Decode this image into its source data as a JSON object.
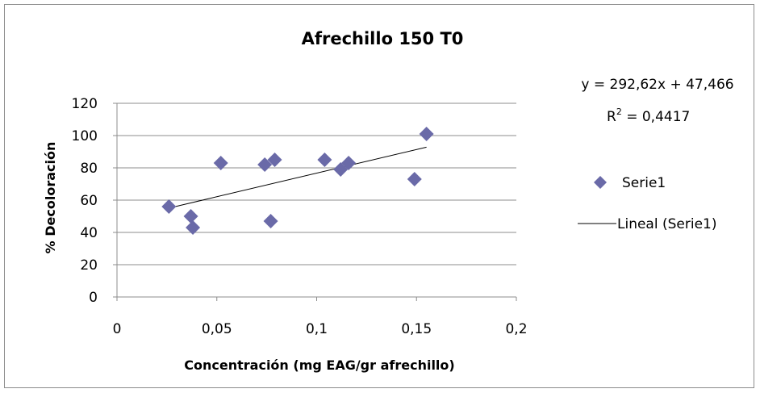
{
  "chart_data": {
    "type": "scatter",
    "title": "Afrechillo 150 T0",
    "xlabel": "Concentración (mg EAG/gr afrechillo)",
    "ylabel": "% Decoloración",
    "xlim": [
      0,
      0.2
    ],
    "ylim": [
      0,
      120
    ],
    "x_ticks": [
      0,
      0.05,
      0.1,
      0.15,
      0.2
    ],
    "x_tick_labels": [
      "0",
      "0,05",
      "0,1",
      "0,15",
      "0,2"
    ],
    "y_ticks": [
      0,
      20,
      40,
      60,
      80,
      100,
      120
    ],
    "y_tick_labels": [
      "0",
      "20",
      "40",
      "60",
      "80",
      "100",
      "120"
    ],
    "grid": "horizontal",
    "legend_position": "right",
    "series": [
      {
        "name": "Serie1",
        "marker": "diamond",
        "color": "#6a6aa8",
        "points": [
          {
            "x": 0.026,
            "y": 56
          },
          {
            "x": 0.037,
            "y": 50
          },
          {
            "x": 0.038,
            "y": 43
          },
          {
            "x": 0.052,
            "y": 83
          },
          {
            "x": 0.074,
            "y": 82
          },
          {
            "x": 0.077,
            "y": 47
          },
          {
            "x": 0.079,
            "y": 85
          },
          {
            "x": 0.104,
            "y": 85
          },
          {
            "x": 0.112,
            "y": 79
          },
          {
            "x": 0.116,
            "y": 83
          },
          {
            "x": 0.149,
            "y": 73
          },
          {
            "x": 0.155,
            "y": 101
          }
        ]
      }
    ],
    "trendline": {
      "name": "Lineal (Serie1)",
      "type": "linear",
      "slope": 292.62,
      "intercept": 47.466,
      "x_range": [
        0.026,
        0.155
      ],
      "color": "#000000",
      "equation_label": "y = 292,62x + 47,466",
      "r2_label_prefix": "R",
      "r2_label_exp": "2",
      "r2_label_value": " = 0,4417"
    }
  }
}
